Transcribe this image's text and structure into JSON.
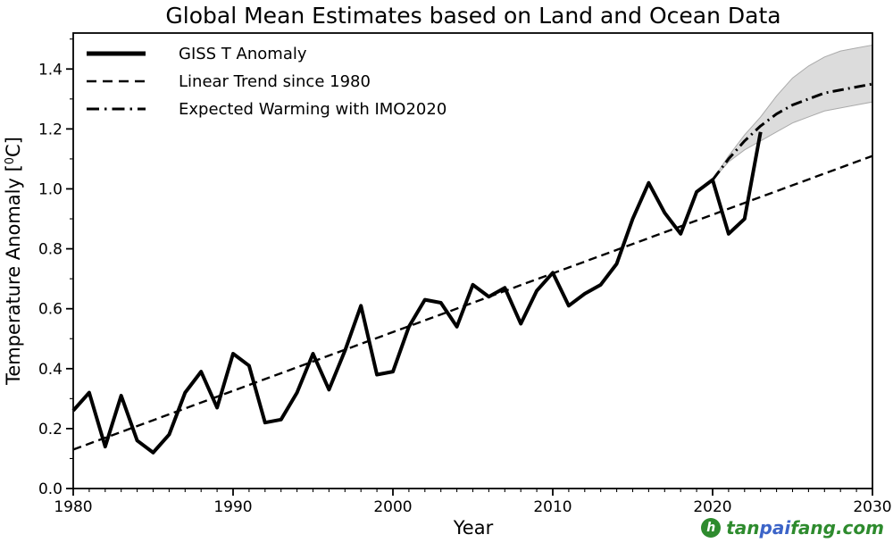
{
  "page": {
    "background": "#ffffff"
  },
  "chart_data": {
    "type": "line",
    "title": "Global Mean Estimates based on Land and Ocean Data",
    "xlabel": "Year",
    "ylabel": "Temperature Anomaly [⁰C]",
    "ylabel_parts": {
      "prefix": "Temperature Anomaly [",
      "sup": "0",
      "suffix": "C]"
    },
    "xlim": [
      1980,
      2030
    ],
    "ylim": [
      0,
      1.52
    ],
    "x_ticks": [
      1980,
      1990,
      2000,
      2010,
      2020,
      2030
    ],
    "y_ticks": [
      0.0,
      0.2,
      0.4,
      0.6,
      0.8,
      1.0,
      1.2,
      1.4
    ],
    "y_tick_labels": [
      "0.0",
      "0.2",
      "0.4",
      "0.6",
      "0.8",
      "1.0",
      "1.2",
      "1.4"
    ],
    "x_minor_step": 1,
    "y_minor_step": 0.1,
    "grid": false,
    "legend_position": "upper-left",
    "line_color": "#000000",
    "series": [
      {
        "name": "GISS T Anomaly",
        "style": "solid",
        "width": 4,
        "x": [
          1980,
          1981,
          1982,
          1983,
          1984,
          1985,
          1986,
          1987,
          1988,
          1989,
          1990,
          1991,
          1992,
          1993,
          1994,
          1995,
          1996,
          1997,
          1998,
          1999,
          2000,
          2001,
          2002,
          2003,
          2004,
          2005,
          2006,
          2007,
          2008,
          2009,
          2010,
          2011,
          2012,
          2013,
          2014,
          2015,
          2016,
          2017,
          2018,
          2019,
          2020,
          2021,
          2022,
          2023
        ],
        "values": [
          0.26,
          0.32,
          0.14,
          0.31,
          0.16,
          0.12,
          0.18,
          0.32,
          0.39,
          0.27,
          0.45,
          0.41,
          0.22,
          0.23,
          0.32,
          0.45,
          0.33,
          0.46,
          0.61,
          0.38,
          0.39,
          0.54,
          0.63,
          0.62,
          0.54,
          0.68,
          0.64,
          0.67,
          0.55,
          0.66,
          0.72,
          0.61,
          0.65,
          0.68,
          0.75,
          0.9,
          1.02,
          0.92,
          0.85,
          0.99,
          1.03,
          0.85,
          0.9,
          1.19
        ]
      },
      {
        "name": "Linear Trend since 1980",
        "style": "dashed",
        "width": 2.4,
        "x": [
          1980,
          2030
        ],
        "values": [
          0.13,
          1.11
        ]
      },
      {
        "name": "Expected Warming with IMO2020",
        "style": "dashdot",
        "width": 3,
        "x": [
          2020,
          2021,
          2022,
          2023,
          2024,
          2025,
          2026,
          2027,
          2028,
          2029,
          2030
        ],
        "values": [
          1.03,
          1.1,
          1.16,
          1.21,
          1.25,
          1.28,
          1.3,
          1.32,
          1.33,
          1.34,
          1.35
        ]
      }
    ],
    "band": {
      "name": "IMO2020 uncertainty band",
      "fill": "#dcdcdc",
      "edge": "#aaaaaa",
      "x": [
        2020,
        2021,
        2022,
        2023,
        2024,
        2025,
        2026,
        2027,
        2028,
        2029,
        2030
      ],
      "upper": [
        1.03,
        1.11,
        1.18,
        1.24,
        1.31,
        1.37,
        1.41,
        1.44,
        1.46,
        1.47,
        1.48
      ],
      "lower": [
        1.03,
        1.09,
        1.13,
        1.16,
        1.19,
        1.22,
        1.24,
        1.26,
        1.27,
        1.28,
        1.29
      ]
    }
  },
  "watermark": {
    "logo_glyph": "h",
    "logo_color": "#2e8b2e",
    "segments": [
      {
        "text": "tan",
        "color": "#2e8b2e"
      },
      {
        "text": "pai",
        "color": "#3c64c8"
      },
      {
        "text": "fang.com",
        "color": "#2e8b2e"
      }
    ]
  }
}
